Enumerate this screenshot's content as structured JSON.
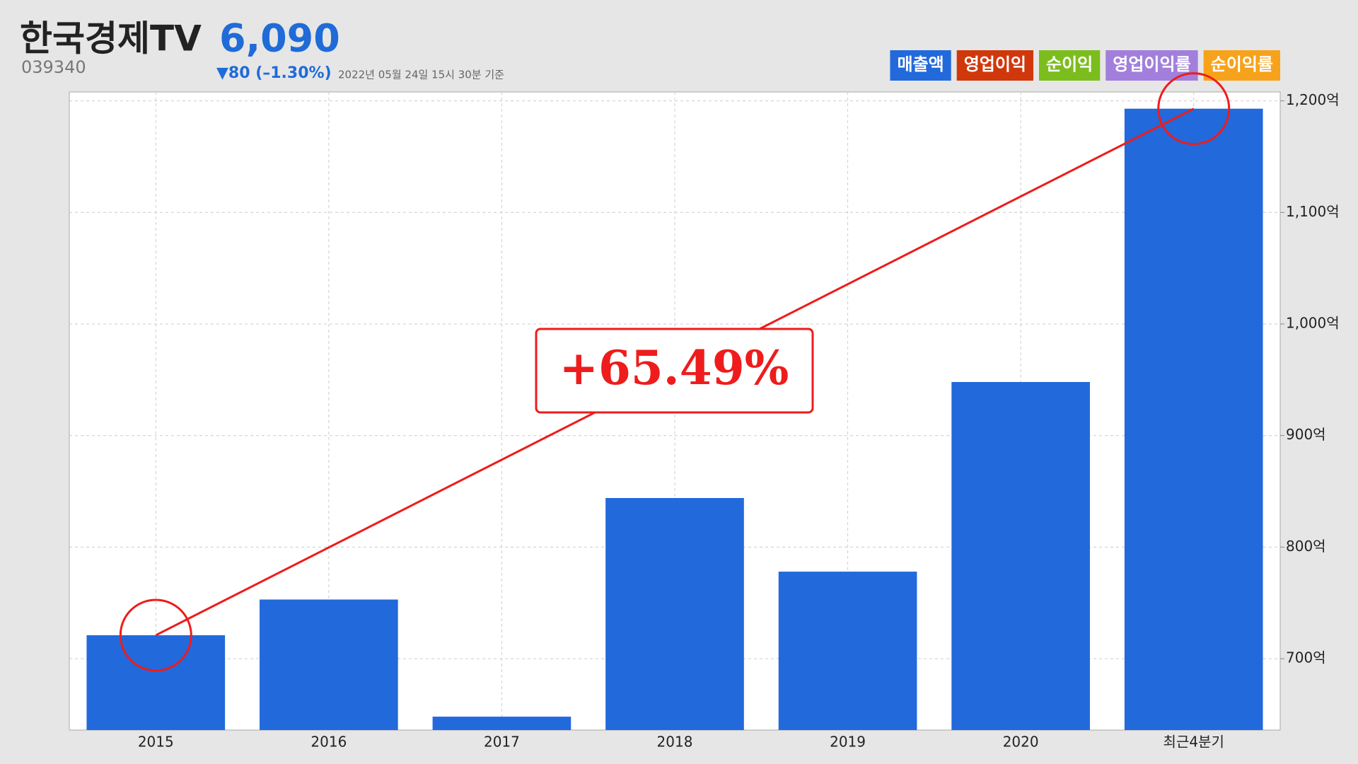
{
  "header": {
    "title": "한국경제TV",
    "price": "6,090",
    "code": "039340",
    "change": "▼80 (–1.30%)",
    "timestamp": "2022년 05월 24일 15시 30분 기준"
  },
  "chart_data": {
    "type": "bar",
    "categories": [
      "2015",
      "2016",
      "2017",
      "2018",
      "2019",
      "2020",
      "최근4분기"
    ],
    "series": [
      {
        "name": "매출액",
        "color": "#2269dc",
        "values": [
          721,
          753,
          648,
          844,
          778,
          948,
          1193
        ]
      }
    ],
    "other_legend": [
      {
        "name": "영업이익",
        "color": "#d0380c"
      },
      {
        "name": "순이익",
        "color": "#7cbd1e"
      },
      {
        "name": "영업이익률",
        "color": "#a27fdc"
      },
      {
        "name": "순이익률",
        "color": "#f7a21b"
      }
    ],
    "ylim": [
      636,
      1208
    ],
    "yticks": [
      {
        "value": 700,
        "label": "700억"
      },
      {
        "value": 800,
        "label": "800억"
      },
      {
        "value": 900,
        "label": "900억"
      },
      {
        "value": 1000,
        "label": "1,000억"
      },
      {
        "value": 1100,
        "label": "1,100억"
      },
      {
        "value": 1200,
        "label": "1,200억"
      }
    ],
    "grid": true,
    "annotation": "+65.49%"
  }
}
